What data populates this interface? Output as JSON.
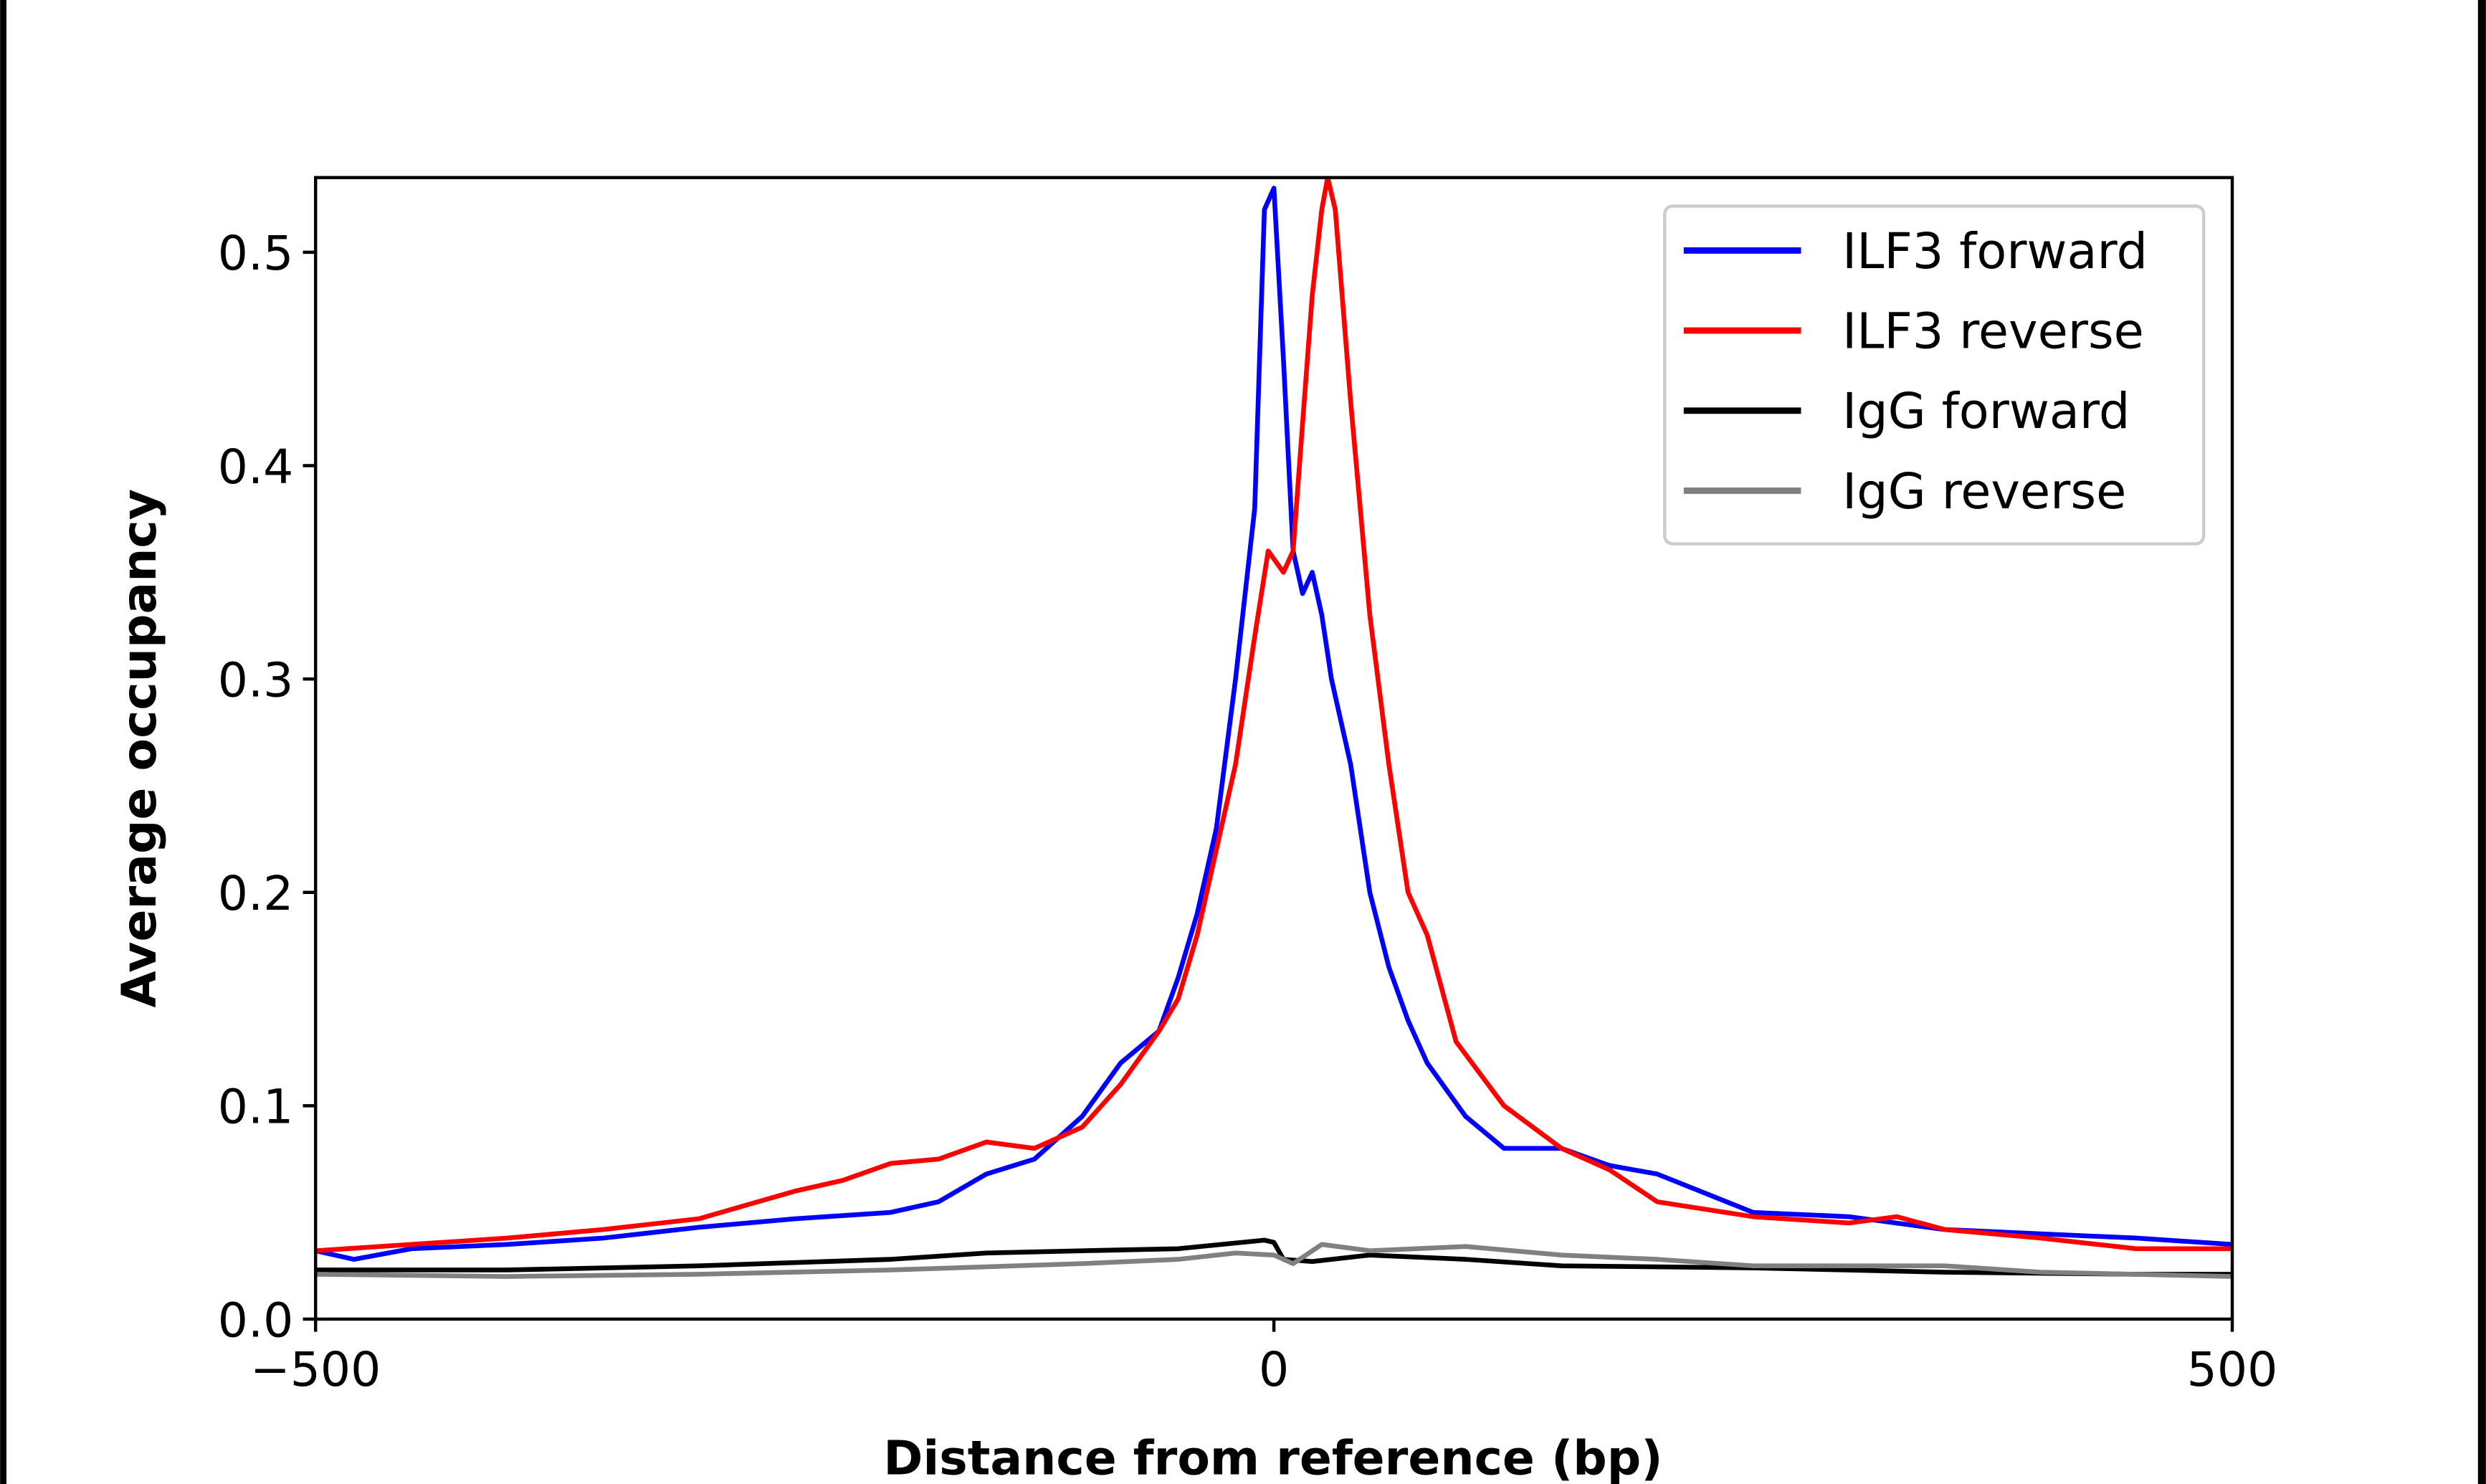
{
  "chart_data": {
    "type": "line",
    "title": "",
    "xlabel": "Distance from reference (bp)",
    "ylabel": "Average occupancy",
    "xlim": [
      -500,
      500
    ],
    "ylim": [
      0,
      0.535
    ],
    "xticks": [
      -500,
      0,
      500
    ],
    "xtick_labels": [
      "−500",
      "0",
      "500"
    ],
    "yticks": [
      0,
      0.1,
      0.2,
      0.3,
      0.4,
      0.5
    ],
    "ytick_labels": [
      "0.0",
      "0.1",
      "0.2",
      "0.3",
      "0.4",
      "0.5"
    ],
    "grid": false,
    "legend_position": "top-right",
    "series": [
      {
        "name": "ILF3 forward",
        "color": "#0000ff",
        "x": [
          -500,
          -480,
          -450,
          -400,
          -350,
          -300,
          -250,
          -200,
          -175,
          -150,
          -125,
          -100,
          -80,
          -60,
          -50,
          -40,
          -30,
          -20,
          -10,
          -5,
          0,
          5,
          10,
          15,
          20,
          25,
          30,
          40,
          50,
          60,
          70,
          80,
          100,
          120,
          150,
          175,
          200,
          250,
          300,
          350,
          400,
          450,
          500
        ],
        "y": [
          0.032,
          0.028,
          0.033,
          0.035,
          0.038,
          0.043,
          0.047,
          0.05,
          0.055,
          0.068,
          0.075,
          0.095,
          0.12,
          0.135,
          0.16,
          0.19,
          0.23,
          0.3,
          0.38,
          0.52,
          0.53,
          0.45,
          0.36,
          0.34,
          0.35,
          0.33,
          0.3,
          0.26,
          0.2,
          0.165,
          0.14,
          0.12,
          0.095,
          0.08,
          0.08,
          0.072,
          0.068,
          0.05,
          0.048,
          0.042,
          0.04,
          0.038,
          0.035
        ]
      },
      {
        "name": "ILF3 reverse",
        "color": "#ff0000",
        "x": [
          -500,
          -450,
          -400,
          -350,
          -300,
          -250,
          -225,
          -200,
          -175,
          -150,
          -125,
          -100,
          -80,
          -60,
          -50,
          -40,
          -30,
          -20,
          -10,
          -3,
          5,
          10,
          15,
          20,
          25,
          28,
          32,
          40,
          50,
          60,
          70,
          80,
          95,
          120,
          150,
          175,
          200,
          250,
          300,
          325,
          350,
          400,
          450,
          500
        ],
        "y": [
          0.032,
          0.035,
          0.038,
          0.042,
          0.047,
          0.06,
          0.065,
          0.073,
          0.075,
          0.083,
          0.08,
          0.09,
          0.11,
          0.135,
          0.15,
          0.18,
          0.22,
          0.26,
          0.32,
          0.36,
          0.35,
          0.36,
          0.42,
          0.48,
          0.52,
          0.535,
          0.52,
          0.43,
          0.33,
          0.26,
          0.2,
          0.18,
          0.13,
          0.1,
          0.08,
          0.07,
          0.055,
          0.048,
          0.045,
          0.048,
          0.042,
          0.038,
          0.033,
          0.033
        ]
      },
      {
        "name": "IgG forward",
        "color": "#000000",
        "x": [
          -500,
          -400,
          -300,
          -200,
          -150,
          -100,
          -50,
          -5,
          0,
          5,
          20,
          50,
          100,
          150,
          250,
          350,
          450,
          500
        ],
        "y": [
          0.023,
          0.023,
          0.025,
          0.028,
          0.031,
          0.032,
          0.033,
          0.037,
          0.036,
          0.028,
          0.027,
          0.03,
          0.028,
          0.025,
          0.024,
          0.022,
          0.021,
          0.021
        ]
      },
      {
        "name": "IgG reverse",
        "color": "#808080",
        "x": [
          -500,
          -400,
          -300,
          -200,
          -100,
          -50,
          -20,
          0,
          10,
          25,
          50,
          100,
          150,
          200,
          250,
          350,
          400,
          500
        ],
        "y": [
          0.021,
          0.02,
          0.021,
          0.023,
          0.026,
          0.028,
          0.031,
          0.03,
          0.026,
          0.035,
          0.032,
          0.034,
          0.03,
          0.028,
          0.025,
          0.025,
          0.022,
          0.02
        ]
      }
    ]
  }
}
